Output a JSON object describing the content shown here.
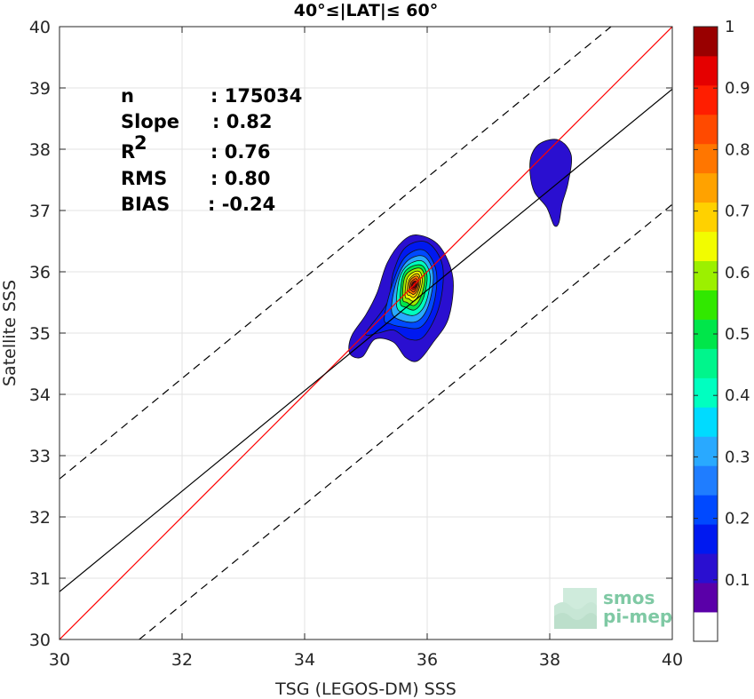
{
  "chart_data": {
    "type": "density_scatter",
    "title": "40°≤|LAT|≤ 60°",
    "xlabel": "TSG (LEGOS-DM) SSS",
    "ylabel": "Satellite SSS",
    "xlim": [
      30,
      40
    ],
    "ylim": [
      30,
      40
    ],
    "xticks": [
      "30",
      "32",
      "34",
      "36",
      "38",
      "40"
    ],
    "yticks": [
      "30",
      "31",
      "32",
      "33",
      "34",
      "35",
      "36",
      "37",
      "38",
      "39",
      "40"
    ],
    "grid": true,
    "stats": [
      {
        "label": "n",
        "value": ": 175034"
      },
      {
        "label": "Slope",
        "value": ": 0.82"
      },
      {
        "label": "R",
        "sup": "2",
        "value": ": 0.76"
      },
      {
        "label": "RMS",
        "value": ": 0.80"
      },
      {
        "label": "BIAS",
        "value": ": -0.24"
      }
    ],
    "lines": [
      {
        "name": "one-to-one",
        "color": "#ff0000",
        "style": "solid",
        "points": [
          [
            30,
            30
          ],
          [
            40,
            40
          ]
        ]
      },
      {
        "name": "regression",
        "color": "#000000",
        "style": "solid",
        "points": [
          [
            30,
            30.78
          ],
          [
            40,
            38.98
          ]
        ]
      },
      {
        "name": "upper-bound",
        "color": "#000000",
        "style": "dashed",
        "points": [
          [
            30,
            32.62
          ],
          [
            39.0,
            40
          ]
        ]
      },
      {
        "name": "lower-bound",
        "color": "#000000",
        "style": "dashed",
        "points": [
          [
            31.3,
            30
          ],
          [
            40,
            37.1
          ]
        ]
      }
    ],
    "density_clusters": [
      {
        "name": "main-cluster",
        "center": [
          35.8,
          35.85
        ],
        "peak": 1.0
      },
      {
        "name": "secondary-cluster",
        "center": [
          38.1,
          37.5
        ],
        "peak": 0.1
      }
    ],
    "colorbar": {
      "range": [
        0,
        1
      ],
      "ticks": [
        "0.1",
        "0.2",
        "0.3",
        "0.4",
        "0.5",
        "0.6",
        "0.7",
        "0.8",
        "0.9",
        "1"
      ],
      "colors": [
        "#ffffff",
        "#5a00a8",
        "#2a0fd0",
        "#0019f0",
        "#0049ff",
        "#1f7dff",
        "#29a9ff",
        "#00dbff",
        "#00ffc0",
        "#00f58c",
        "#00e64a",
        "#31e800",
        "#9cf000",
        "#f2fc00",
        "#ffd100",
        "#ffa200",
        "#ff7600",
        "#ff4a00",
        "#ff1e00",
        "#e50000",
        "#990000"
      ]
    },
    "watermark": {
      "line1": "smos",
      "line2": "pi-mep"
    }
  }
}
